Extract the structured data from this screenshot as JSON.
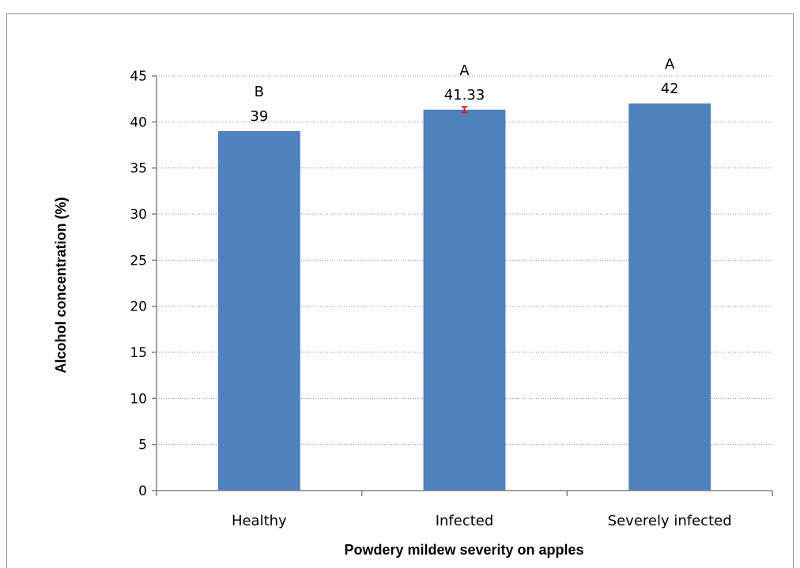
{
  "chart_data": {
    "type": "bar",
    "categories": [
      "Healthy",
      "Infected",
      "Severely infected"
    ],
    "values": [
      39,
      41.33,
      42
    ],
    "value_labels": [
      "39",
      "41.33",
      "42"
    ],
    "significance_letters": [
      "B",
      "A",
      "A"
    ],
    "error_bars": [
      null,
      0.3,
      null
    ],
    "xlabel": "Powdery mildew severity on apples",
    "ylabel": "Alcohol concentration (%)",
    "ylim": [
      0,
      45
    ],
    "yticks": [
      0,
      5,
      10,
      15,
      20,
      25,
      30,
      35,
      40,
      45
    ],
    "grid": true,
    "legend": "none",
    "colors": {
      "bar": "#4F81BD",
      "error_bar": "#E8141B",
      "grid": "#8c8c8c",
      "axis": "#808080"
    }
  }
}
